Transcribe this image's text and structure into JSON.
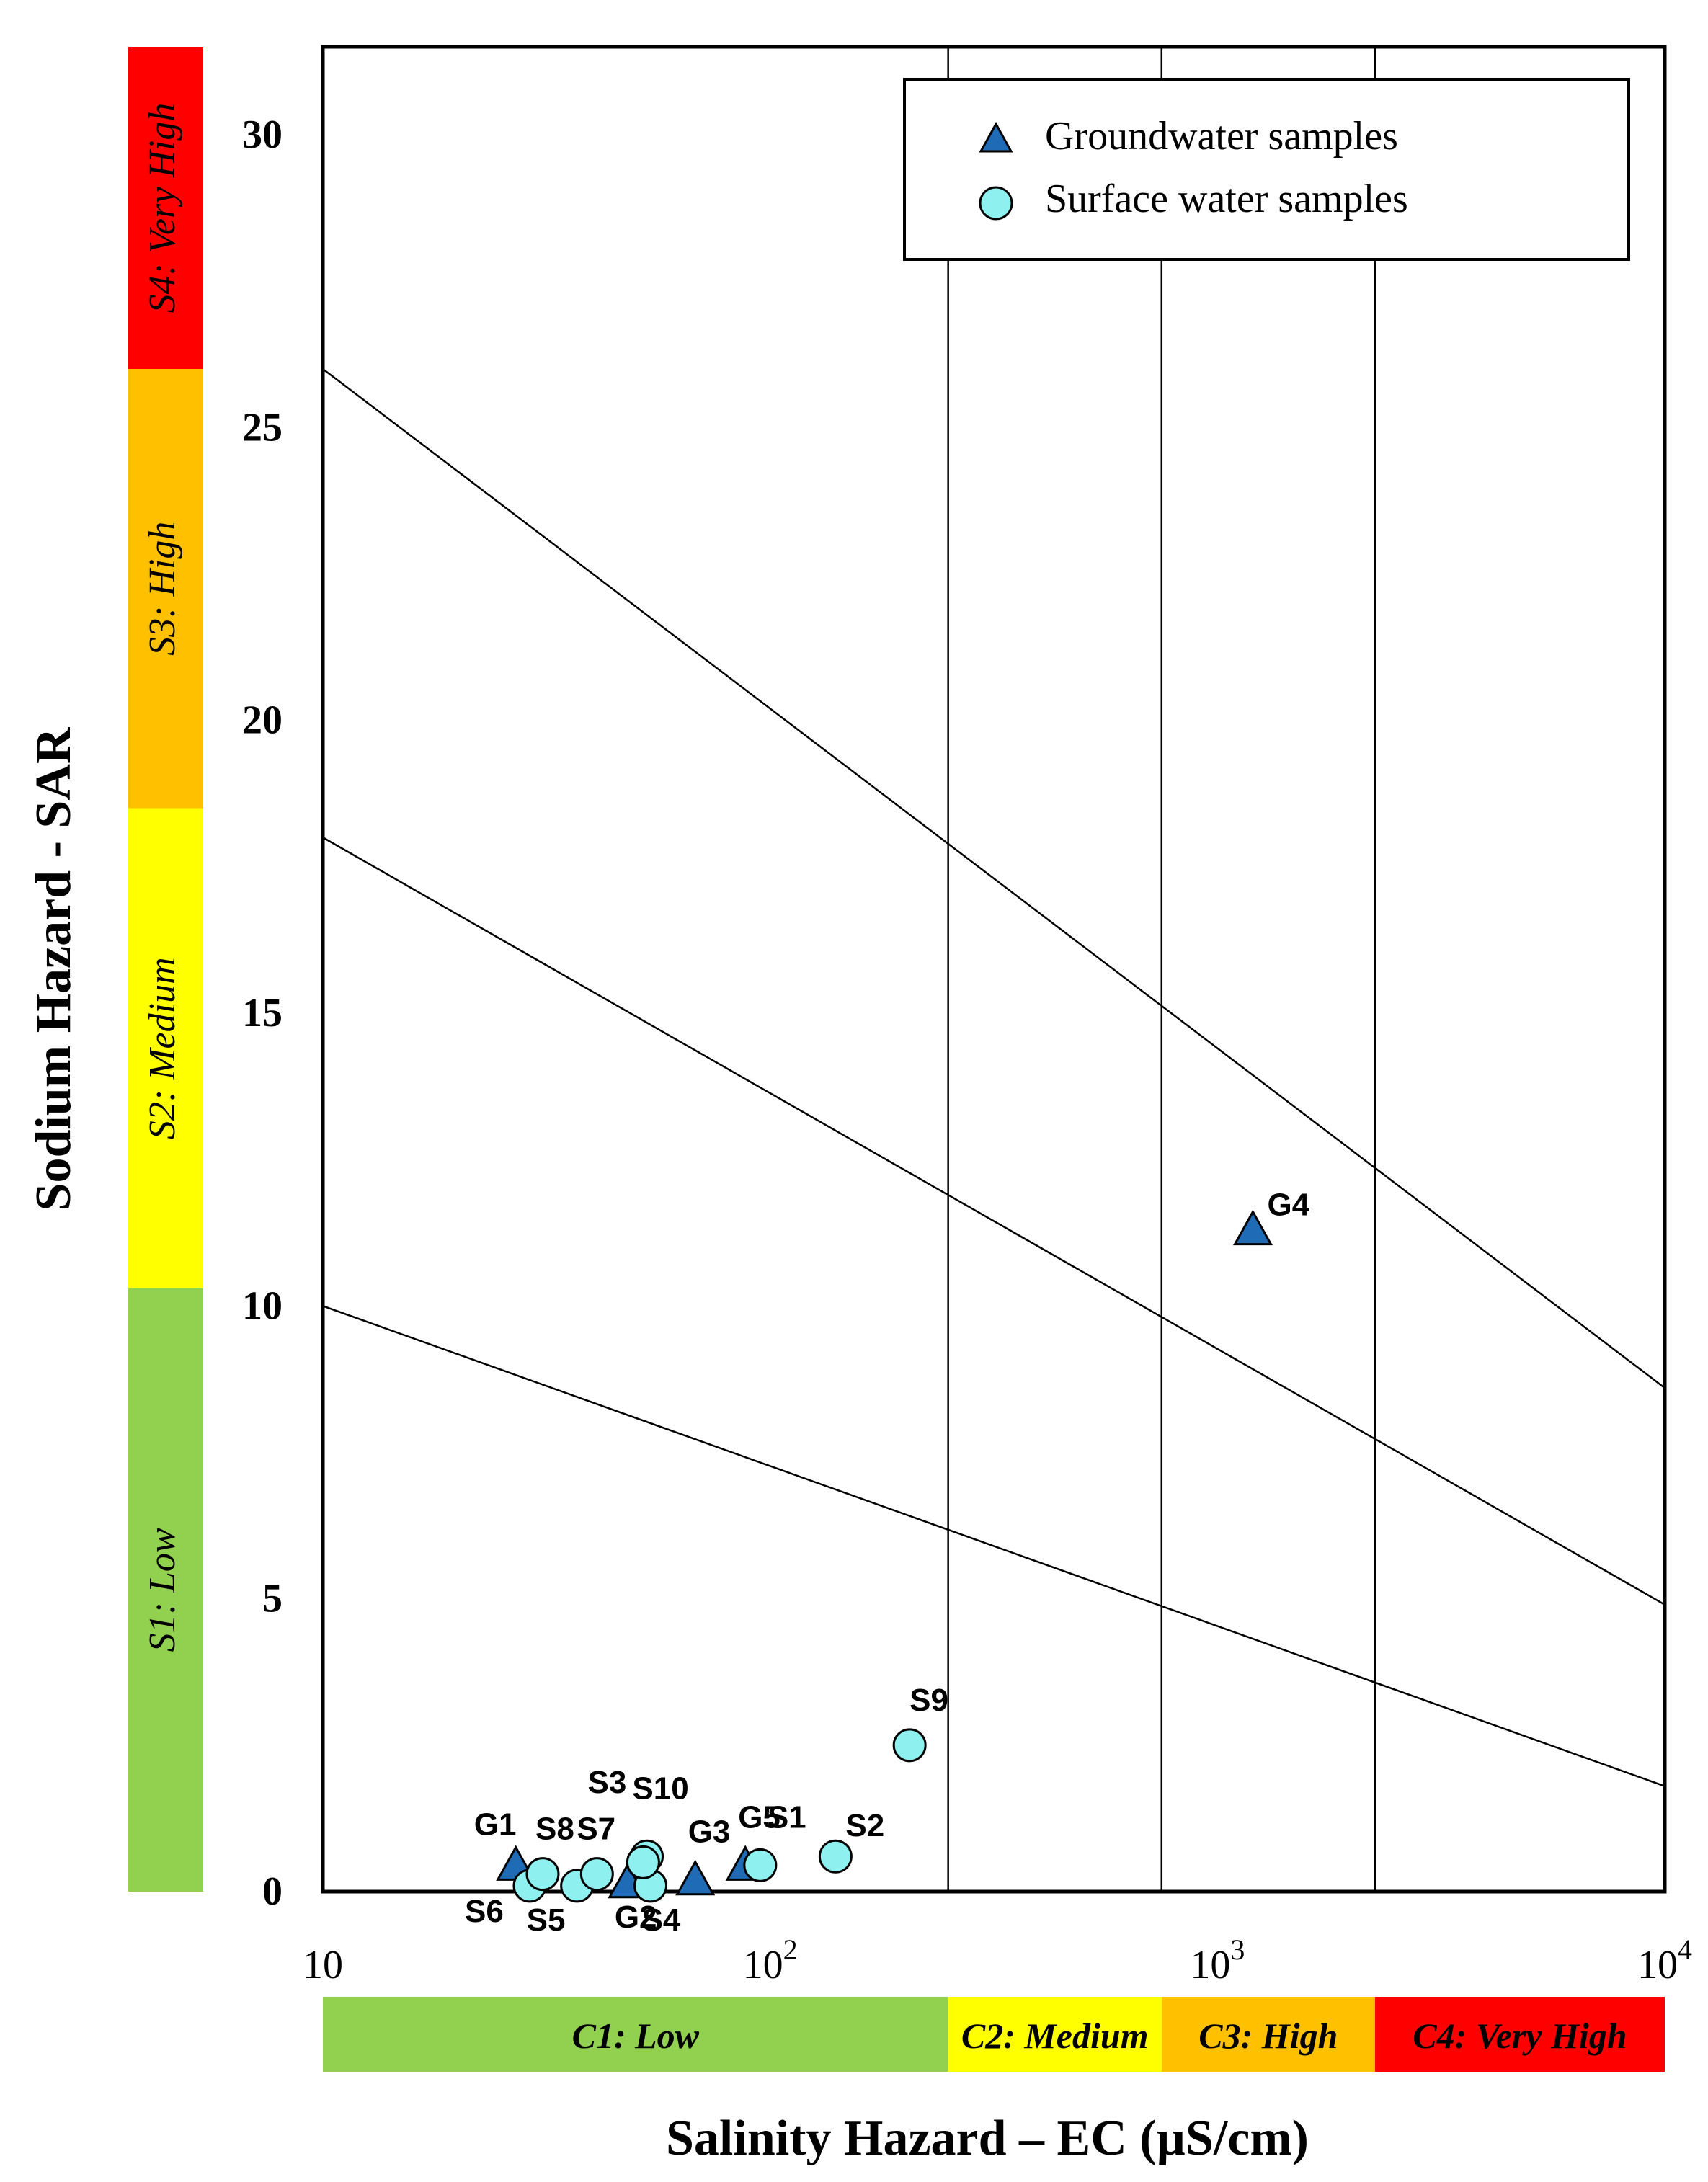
{
  "chart_data": {
    "type": "scatter",
    "title": "",
    "xlabel": "Salinity Hazard – EC (µS/cm)",
    "ylabel": "Sodium Hazard - SAR",
    "x_scale": "log",
    "xlim": [
      10,
      10000
    ],
    "ylim": [
      0,
      30
    ],
    "x_tick_labels": [
      {
        "value": 10,
        "base": "10",
        "exp": ""
      },
      {
        "value": 100,
        "base": "10",
        "exp": "2"
      },
      {
        "value": 1000,
        "base": "10",
        "exp": "3"
      },
      {
        "value": 10000,
        "base": "10",
        "exp": "4"
      }
    ],
    "y_ticks": [
      0,
      5,
      10,
      15,
      20,
      25,
      30
    ],
    "class_boundaries_ec": [
      250,
      750,
      2250
    ],
    "hazard_lines": [
      {
        "x": [
          10,
          10000
        ],
        "y": [
          10,
          1.8
        ]
      },
      {
        "x": [
          10,
          10000
        ],
        "y": [
          18,
          4.9
        ]
      },
      {
        "x": [
          10,
          10000
        ],
        "y": [
          26,
          8.6
        ]
      }
    ],
    "legend": {
      "position": "top-right",
      "entries": [
        {
          "label": "Groundwater samples",
          "marker": "triangle"
        },
        {
          "label": "Surface water samples",
          "marker": "circle"
        }
      ]
    },
    "colors": {
      "groundwater": "#1f6bb5",
      "surface": "#8ef1ef",
      "low": "#92d050",
      "medium": "#ffff00",
      "high": "#ffc000",
      "very_high": "#ff0000"
    },
    "sodium_bands": [
      {
        "label": "S1: Low",
        "from": 0,
        "to": 10.3,
        "color": "#92d050"
      },
      {
        "label": "S2: Medium",
        "from": 10.3,
        "to": 18.5,
        "color": "#ffff00"
      },
      {
        "label": "S3: High",
        "from": 18.5,
        "to": 26,
        "color": "#ffc000"
      },
      {
        "label": "S4: Very High",
        "from": 26,
        "to": 31.5,
        "color": "#ff0000"
      }
    ],
    "salinity_bands": [
      {
        "label": "C1: Low",
        "from": 10,
        "to": 250,
        "color": "#92d050"
      },
      {
        "label": "C2: Medium",
        "from": 250,
        "to": 750,
        "color": "#ffff00"
      },
      {
        "label": "C3: High",
        "from": 750,
        "to": 2250,
        "color": "#ffc000"
      },
      {
        "label": "C4: Very High",
        "from": 2250,
        "to": 10000,
        "color": "#ff0000"
      }
    ],
    "series": [
      {
        "name": "Groundwater samples",
        "marker": "triangle",
        "points": [
          {
            "label": "G1",
            "x": 27,
            "y": 0.45
          },
          {
            "label": "G2",
            "x": 48,
            "y": 0.15
          },
          {
            "label": "G3",
            "x": 68,
            "y": 0.2
          },
          {
            "label": "G4",
            "x": 1200,
            "y": 11.3
          },
          {
            "label": "G5",
            "x": 88,
            "y": 0.45
          }
        ]
      },
      {
        "name": "Surface water samples",
        "marker": "circle",
        "points": [
          {
            "label": "S1",
            "x": 95,
            "y": 0.45
          },
          {
            "label": "S2",
            "x": 140,
            "y": 0.6
          },
          {
            "label": "S3",
            "x": 53,
            "y": 0.6
          },
          {
            "label": "S4",
            "x": 54,
            "y": 0.1
          },
          {
            "label": "S5",
            "x": 37,
            "y": 0.1
          },
          {
            "label": "S6",
            "x": 29,
            "y": 0.1
          },
          {
            "label": "S7",
            "x": 41,
            "y": 0.3
          },
          {
            "label": "S8",
            "x": 31,
            "y": 0.3
          },
          {
            "label": "S9",
            "x": 205,
            "y": 2.5
          },
          {
            "label": "S10",
            "x": 52,
            "y": 0.5
          }
        ]
      }
    ]
  }
}
